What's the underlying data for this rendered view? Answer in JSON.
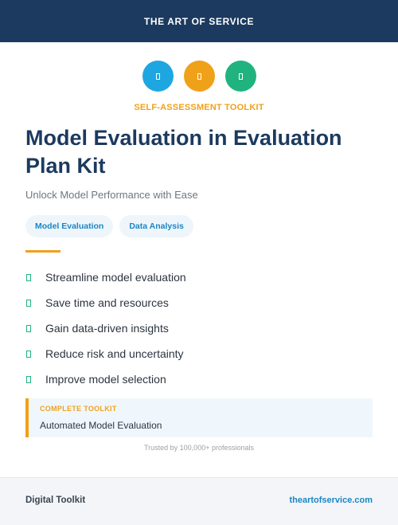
{
  "header": {
    "brand": "THE ART OF SERVICE"
  },
  "icons": [
    {
      "name": "document-icon",
      "color": "#1ea6e0"
    },
    {
      "name": "document-icon",
      "color": "#f0a11a"
    },
    {
      "name": "document-icon",
      "color": "#20b37f"
    }
  ],
  "eyebrow": "SELF-ASSESSMENT TOOLKIT",
  "title": "Model Evaluation in Evaluation Plan Kit",
  "subtitle": "Unlock Model Performance with Ease",
  "tags": [
    "Model Evaluation",
    "Data Analysis"
  ],
  "benefits": [
    "Streamline model evaluation",
    "Save time and resources",
    "Gain data-driven insights",
    "Reduce risk and uncertainty",
    "Improve model selection"
  ],
  "callout": {
    "label": "COMPLETE TOOLKIT",
    "value": "Automated Model Evaluation"
  },
  "trust": "Trusted by 100,000+ professionals",
  "footer": {
    "left": "Digital Toolkit",
    "right": "theartofservice.com"
  },
  "colors": {
    "navy": "#1c3a5f",
    "accent_orange": "#f0a11a",
    "accent_blue": "#1ea6e0",
    "accent_green": "#20b37f"
  }
}
